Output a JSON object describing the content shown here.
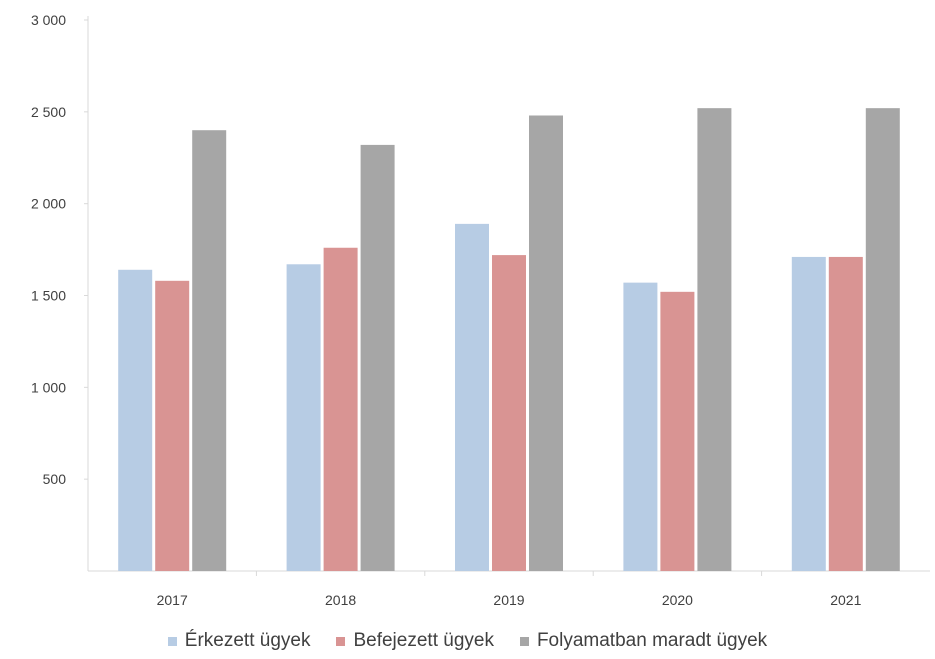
{
  "chart_data": {
    "type": "bar",
    "title": "",
    "xlabel": "",
    "ylabel": "",
    "categories": [
      "2017",
      "2018",
      "2019",
      "2020",
      "2021"
    ],
    "ylim": [
      0,
      3000
    ],
    "yticks": [
      500,
      1000,
      1500,
      2000,
      2500,
      3000
    ],
    "ytick_labels": [
      "500",
      "1 000",
      "1 500",
      "2 000",
      "2 500",
      "3 000"
    ],
    "grid": false,
    "legend_position": "bottom",
    "series": [
      {
        "name": "Érkezett ügyek",
        "color": "#b7cce4",
        "values": [
          1640,
          1670,
          1890,
          1570,
          1710
        ]
      },
      {
        "name": "Befejezett ügyek",
        "color": "#d99493",
        "values": [
          1580,
          1760,
          1720,
          1520,
          1710
        ]
      },
      {
        "name": "Folyamatban maradt ügyek",
        "color": "#a6a6a6",
        "values": [
          2400,
          2320,
          2480,
          2520,
          2520
        ]
      }
    ]
  }
}
